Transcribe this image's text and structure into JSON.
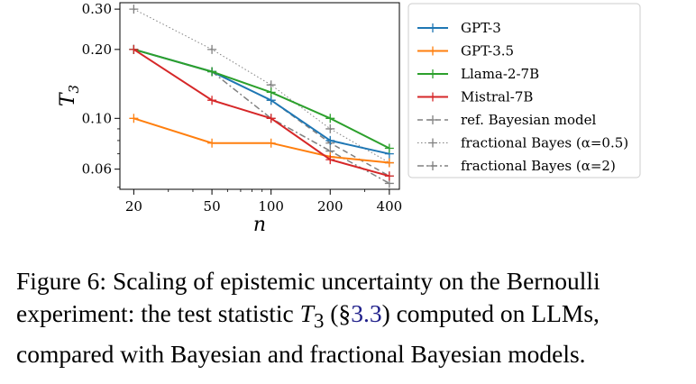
{
  "chart_data": {
    "type": "line",
    "x": [
      20,
      50,
      100,
      200,
      400
    ],
    "x_ticks": [
      "20",
      "50",
      "100",
      "200",
      "400"
    ],
    "y_ticks": [
      {
        "value": 0.3,
        "label": "0.30"
      },
      {
        "value": 0.2,
        "label": "0.20"
      },
      {
        "value": 0.1,
        "label": "0.10"
      },
      {
        "value": 0.06,
        "label": "0.06"
      }
    ],
    "xlabel": "n",
    "ylabel": "T",
    "ylabel_sub": "3",
    "xscale": "log",
    "yscale": "log",
    "xlim": [
      17,
      450
    ],
    "ylim": [
      0.049,
      0.32
    ],
    "grid": false,
    "legend_placement": "outside-right",
    "series": [
      {
        "name": "GPT-3",
        "color": "#1f77b4",
        "style": "solid",
        "values": [
          0.2,
          0.16,
          0.12,
          0.08,
          0.07
        ]
      },
      {
        "name": "GPT-3.5",
        "color": "#ff7f0e",
        "style": "solid",
        "values": [
          0.1,
          0.078,
          0.078,
          0.068,
          0.064
        ]
      },
      {
        "name": "Llama-2-7B",
        "color": "#2ca02c",
        "style": "solid",
        "values": [
          0.2,
          0.16,
          0.13,
          0.1,
          0.074
        ]
      },
      {
        "name": "Mistral-7B",
        "color": "#d62728",
        "style": "solid",
        "values": [
          0.2,
          0.12,
          0.1,
          0.066,
          0.056
        ]
      },
      {
        "name": "ref. Bayesian model",
        "color": "#808080",
        "style": "dashed",
        "values": [
          0.2,
          0.16,
          0.12,
          0.078,
          0.056
        ]
      },
      {
        "name": "fractional Bayes (α=0.5)",
        "color": "#808080",
        "style": "dotted",
        "values": [
          0.3,
          0.2,
          0.14,
          0.09,
          0.064
        ]
      },
      {
        "name": "fractional Bayes (α=2)",
        "color": "#808080",
        "style": "dashdot",
        "values": [
          0.2,
          0.16,
          0.1,
          0.072,
          0.052
        ]
      }
    ]
  },
  "caption": {
    "prefix": "Figure 6: Scaling of epistemic uncertainty on the Bernoulli experiment: the test statistic ",
    "math": "T",
    "math_sub": "3",
    "mid": " (§",
    "ref": "3.3",
    "suffix": ") computed on LLMs, compared with Bayesian and fractional Bayesian models."
  }
}
